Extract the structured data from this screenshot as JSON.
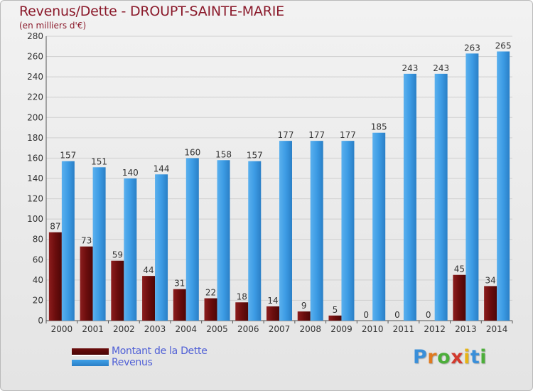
{
  "header": {
    "title": "Revenus/Dette - DROUPT-SAINTE-MARIE",
    "subtitle": "(en milliers d'€)"
  },
  "legend": {
    "debt_label": "Montant de la Dette",
    "revenue_label": "Revenus"
  },
  "logo": {
    "letters": [
      "P",
      "r",
      "o",
      "x",
      "i",
      "t",
      "i"
    ],
    "colors": [
      "#3a8fd9",
      "#e07a1f",
      "#4cae3a",
      "#d23a2e",
      "#e6b416",
      "#3a8fd9",
      "#4cae3a"
    ]
  },
  "colors": {
    "debt": "#6b0d0d",
    "revenue": "#3c9be4",
    "title": "#8b1a2b",
    "legend_text": "#4f5fd6"
  },
  "chart_data": {
    "type": "bar",
    "categories": [
      "2000",
      "2001",
      "2002",
      "2003",
      "2004",
      "2005",
      "2006",
      "2007",
      "2008",
      "2009",
      "2010",
      "2011",
      "2012",
      "2013",
      "2014"
    ],
    "series": [
      {
        "name": "Montant de la Dette",
        "values": [
          87,
          73,
          59,
          44,
          31,
          22,
          18,
          14,
          9,
          5,
          0,
          0,
          0,
          45,
          34
        ]
      },
      {
        "name": "Revenus",
        "values": [
          157,
          151,
          140,
          144,
          160,
          158,
          157,
          177,
          177,
          177,
          185,
          243,
          243,
          263,
          265
        ]
      }
    ],
    "title": "Revenus/Dette - DROUPT-SAINTE-MARIE",
    "subtitle": "(en milliers d'€)",
    "ylim": [
      0,
      280
    ],
    "yticks": [
      0,
      20,
      40,
      60,
      80,
      100,
      120,
      140,
      160,
      180,
      200,
      220,
      240,
      260,
      280
    ],
    "grid": true,
    "legend_position": "bottom-left"
  }
}
